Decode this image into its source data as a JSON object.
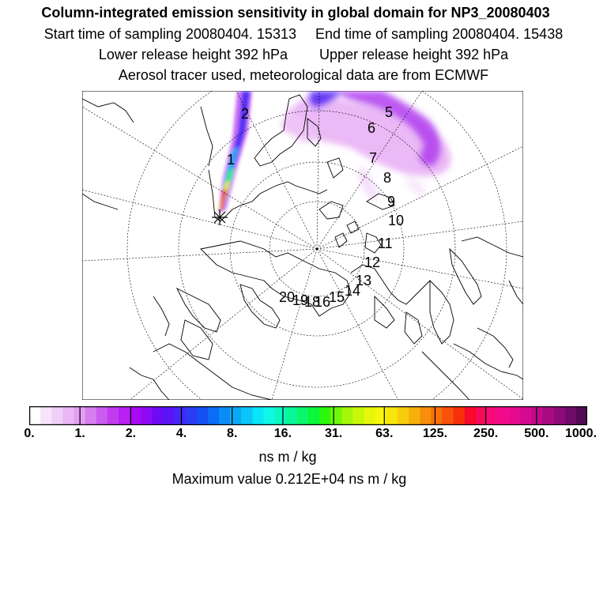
{
  "header": {
    "title": "Column-integrated emission sensitivity in global domain for NP3_20080403",
    "start_label": "Start time of sampling 20080404. 15313",
    "end_label": "End time of sampling 20080404. 15438",
    "lower_label": "Lower release height  392 hPa",
    "upper_label": "Upper release height  392 hPa",
    "tracer_line": "Aerosol tracer used, meteorological data are from ECMWF"
  },
  "map": {
    "day_labels": [
      "2",
      "1",
      "5",
      "6",
      "7",
      "8",
      "9",
      "10",
      "11",
      "12",
      "13",
      "14",
      "15",
      "16",
      "18",
      "19",
      "20"
    ],
    "release_marker": "release-point"
  },
  "colorbar": {
    "ticks": [
      "0.",
      "1.",
      "2.",
      "4.",
      "8.",
      "16.",
      "31.",
      "63.",
      "125.",
      "250.",
      "500.",
      "1000."
    ],
    "colors": [
      "#ffffff",
      "#f6e4fb",
      "#f0cef8",
      "#eab8f5",
      "#e39ff2",
      "#d77ef0",
      "#cc5bf0",
      "#c13cf0",
      "#b821f2",
      "#a90af5",
      "#8d0af5",
      "#6f0af7",
      "#5a14f5",
      "#4526f5",
      "#2c3bf5",
      "#1550f5",
      "#0a6cf7",
      "#0a8cf7",
      "#0aa9f7",
      "#0ac5f7",
      "#0ae6f7",
      "#10f7e6",
      "#0af7c1",
      "#0af799",
      "#0af76b",
      "#0af73b",
      "#2cf70a",
      "#6ef70a",
      "#a3f70a",
      "#c9f70a",
      "#e6f70a",
      "#f7f70a",
      "#f7e60a",
      "#f7cc0a",
      "#f7b00a",
      "#f78f0a",
      "#f7700a",
      "#f7510a",
      "#f7300a",
      "#f70a2a",
      "#f70a5a",
      "#f70a7a",
      "#f20a8c",
      "#e50a90",
      "#d40a90",
      "#c00a8c",
      "#a80a84",
      "#8d0a7a",
      "#700a6a",
      "#520a56"
    ],
    "units": "ns m / kg",
    "max_value": "Maximum value  0.212E+04 ns m / kg"
  }
}
